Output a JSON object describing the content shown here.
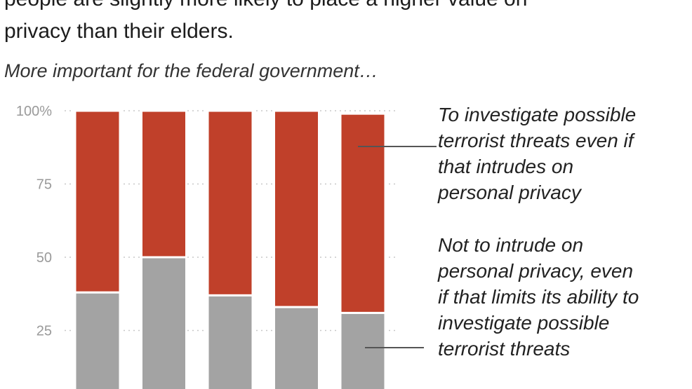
{
  "header": {
    "lines": [
      "people are slightly more likely to place a higher value on",
      "privacy than their elders."
    ],
    "subtitle": "More important for the federal government…"
  },
  "legend": {
    "investigate": [
      "To investigate possible",
      "terrorist threats even if",
      "that intrudes on",
      "personal privacy"
    ],
    "privacy": [
      "Not to intrude on",
      "personal privacy, even",
      "if that limits its ability to",
      "investigate possible",
      "terrorist threats"
    ]
  },
  "colors": {
    "investigate": "#c0402a",
    "privacy": "#a3a3a3",
    "grid": "#c8c8c8",
    "leader": "#555555"
  },
  "chart_data": {
    "type": "bar",
    "stacked": true,
    "percent": true,
    "ylim": [
      0,
      100
    ],
    "yticks": [
      {
        "value": 100,
        "label": "100%"
      },
      {
        "value": 75,
        "label": "75"
      },
      {
        "value": 50,
        "label": "50"
      },
      {
        "value": 25,
        "label": "25"
      }
    ],
    "series": [
      {
        "key": "privacy",
        "values": [
          38,
          50,
          37,
          33,
          31
        ]
      },
      {
        "key": "investigate",
        "values": [
          62,
          50,
          63,
          67,
          68
        ]
      }
    ]
  }
}
